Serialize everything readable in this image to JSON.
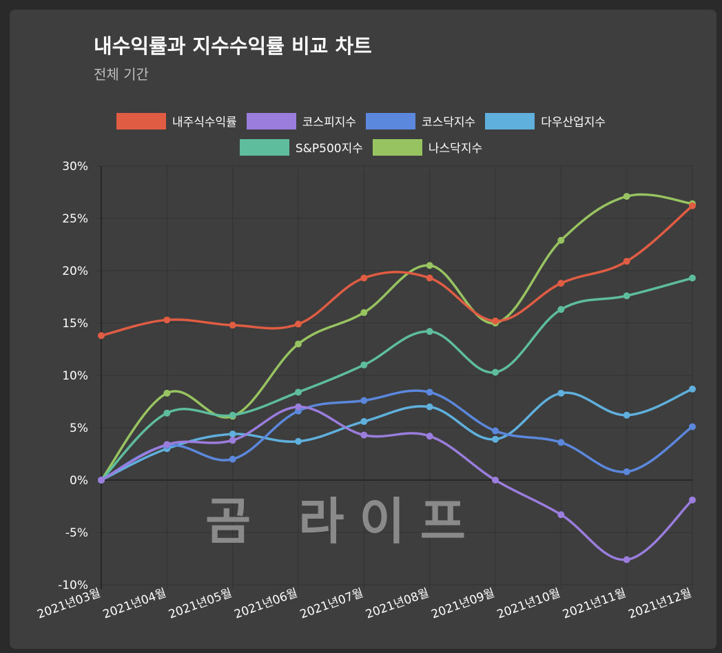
{
  "chart_data": {
    "type": "line",
    "title": "내수익률과 지수수익률 비교 차트",
    "subtitle": "전체 기간",
    "categories": [
      "2021년03월",
      "2021년04월",
      "2021년05월",
      "2021년06월",
      "2021년07월",
      "2021년08월",
      "2021년09월",
      "2021년10월",
      "2021년11월",
      "2021년12월"
    ],
    "ylim": [
      -10,
      30
    ],
    "yticks": [
      -10,
      -5,
      0,
      5,
      10,
      15,
      20,
      25,
      30
    ],
    "ytick_labels": [
      "-10%",
      "-5%",
      "0%",
      "5%",
      "10%",
      "15%",
      "20%",
      "25%",
      "30%"
    ],
    "grid": true,
    "legend_position": "top",
    "series": [
      {
        "name": "내주식수익률",
        "color": "#e05c43",
        "values": [
          13.8,
          15.3,
          14.8,
          14.9,
          19.3,
          19.3,
          15.2,
          18.8,
          20.9,
          26.2
        ]
      },
      {
        "name": "코스피지수",
        "color": "#9a7ddc",
        "values": [
          0,
          3.4,
          3.8,
          7.0,
          4.3,
          4.2,
          0,
          -3.3,
          -7.6,
          -1.9
        ]
      },
      {
        "name": "코스닥지수",
        "color": "#5b88dc",
        "values": [
          0,
          3.3,
          2.0,
          6.6,
          7.6,
          8.4,
          4.7,
          3.6,
          0.8,
          5.1
        ]
      },
      {
        "name": "다우산업지수",
        "color": "#5fb0dd",
        "values": [
          0,
          3.0,
          4.4,
          3.7,
          5.6,
          7.0,
          3.9,
          8.3,
          6.2,
          8.7
        ]
      },
      {
        "name": "S&P500지수",
        "color": "#5dbd9c",
        "values": [
          0,
          6.4,
          6.2,
          8.4,
          11.0,
          14.2,
          10.3,
          16.3,
          17.6,
          19.3
        ]
      },
      {
        "name": "나스닥지수",
        "color": "#98c361",
        "values": [
          0,
          8.3,
          6.1,
          13.0,
          16.0,
          20.5,
          15.0,
          22.9,
          27.1,
          26.4
        ]
      }
    ]
  },
  "watermark": "곰 라이프"
}
